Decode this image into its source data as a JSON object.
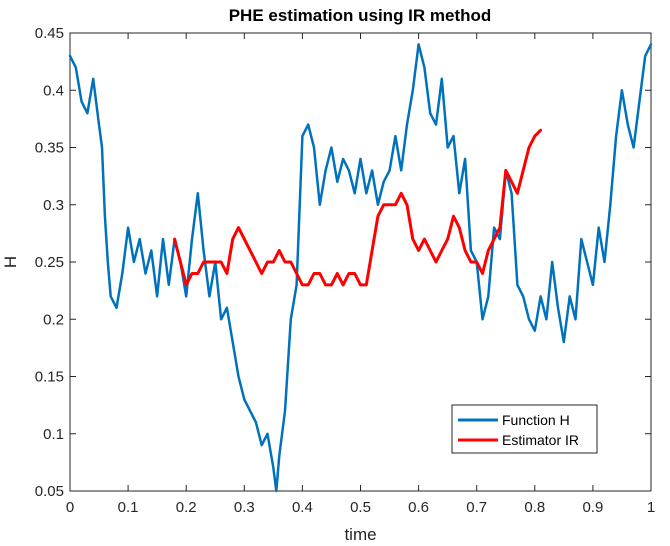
{
  "chart_data": {
    "type": "line",
    "title": "PHE estimation using IR method",
    "xlabel": "time",
    "ylabel": "H",
    "xlim": [
      0,
      1
    ],
    "ylim": [
      0.05,
      0.45
    ],
    "xticks": [
      0,
      0.1,
      0.2,
      0.3,
      0.4,
      0.5,
      0.6,
      0.7,
      0.8,
      0.9,
      1
    ],
    "xtick_labels": [
      "0",
      "0.1",
      "0.2",
      "0.3",
      "0.4",
      "0.5",
      "0.6",
      "0.7",
      "0.8",
      "0.9",
      "1"
    ],
    "yticks": [
      0.05,
      0.1,
      0.15,
      0.2,
      0.25,
      0.3,
      0.35,
      0.4,
      0.45
    ],
    "ytick_labels": [
      "0.05",
      "0.1",
      "0.15",
      "0.2",
      "0.25",
      "0.3",
      "0.35",
      "0.4",
      "0.45"
    ],
    "grid": false,
    "legend_position": "bottom-right",
    "series": [
      {
        "name": "Function H",
        "color": "#0072BD",
        "x": [
          0.0,
          0.01,
          0.02,
          0.03,
          0.04,
          0.05,
          0.055,
          0.06,
          0.065,
          0.07,
          0.08,
          0.09,
          0.1,
          0.11,
          0.12,
          0.13,
          0.14,
          0.15,
          0.16,
          0.17,
          0.18,
          0.19,
          0.2,
          0.21,
          0.22,
          0.23,
          0.24,
          0.25,
          0.26,
          0.27,
          0.28,
          0.29,
          0.3,
          0.31,
          0.32,
          0.33,
          0.34,
          0.35,
          0.355,
          0.36,
          0.37,
          0.38,
          0.39,
          0.4,
          0.41,
          0.42,
          0.43,
          0.44,
          0.45,
          0.46,
          0.47,
          0.48,
          0.49,
          0.5,
          0.51,
          0.52,
          0.53,
          0.54,
          0.55,
          0.56,
          0.57,
          0.58,
          0.59,
          0.6,
          0.61,
          0.62,
          0.63,
          0.64,
          0.65,
          0.66,
          0.67,
          0.68,
          0.69,
          0.7,
          0.71,
          0.72,
          0.73,
          0.74,
          0.75,
          0.76,
          0.77,
          0.78,
          0.79,
          0.8,
          0.81,
          0.82,
          0.83,
          0.84,
          0.85,
          0.86,
          0.87,
          0.88,
          0.89,
          0.9,
          0.91,
          0.92,
          0.93,
          0.94,
          0.95,
          0.96,
          0.97,
          0.98,
          0.99,
          1.0
        ],
        "y": [
          0.43,
          0.42,
          0.39,
          0.38,
          0.41,
          0.37,
          0.35,
          0.29,
          0.25,
          0.22,
          0.21,
          0.24,
          0.28,
          0.25,
          0.27,
          0.24,
          0.26,
          0.22,
          0.27,
          0.23,
          0.27,
          0.25,
          0.22,
          0.27,
          0.31,
          0.26,
          0.22,
          0.25,
          0.2,
          0.21,
          0.18,
          0.15,
          0.13,
          0.12,
          0.11,
          0.09,
          0.1,
          0.07,
          0.05,
          0.08,
          0.12,
          0.2,
          0.23,
          0.36,
          0.37,
          0.35,
          0.3,
          0.33,
          0.35,
          0.32,
          0.34,
          0.33,
          0.31,
          0.34,
          0.31,
          0.33,
          0.3,
          0.32,
          0.33,
          0.36,
          0.33,
          0.37,
          0.4,
          0.44,
          0.42,
          0.38,
          0.37,
          0.41,
          0.35,
          0.36,
          0.31,
          0.34,
          0.26,
          0.25,
          0.2,
          0.22,
          0.28,
          0.27,
          0.33,
          0.31,
          0.23,
          0.22,
          0.2,
          0.19,
          0.22,
          0.2,
          0.25,
          0.21,
          0.18,
          0.22,
          0.2,
          0.27,
          0.25,
          0.23,
          0.28,
          0.25,
          0.3,
          0.36,
          0.4,
          0.37,
          0.35,
          0.39,
          0.43,
          0.44
        ]
      },
      {
        "name": "Estimator IR",
        "color": "#FF0000",
        "x": [
          0.18,
          0.19,
          0.2,
          0.21,
          0.22,
          0.23,
          0.24,
          0.25,
          0.26,
          0.27,
          0.28,
          0.29,
          0.3,
          0.31,
          0.32,
          0.33,
          0.34,
          0.35,
          0.36,
          0.37,
          0.38,
          0.39,
          0.4,
          0.41,
          0.42,
          0.43,
          0.44,
          0.45,
          0.46,
          0.47,
          0.48,
          0.49,
          0.5,
          0.51,
          0.52,
          0.53,
          0.54,
          0.55,
          0.56,
          0.57,
          0.58,
          0.59,
          0.6,
          0.61,
          0.62,
          0.63,
          0.64,
          0.65,
          0.66,
          0.67,
          0.68,
          0.69,
          0.7,
          0.71,
          0.72,
          0.73,
          0.74,
          0.75,
          0.76,
          0.77,
          0.78,
          0.79,
          0.8,
          0.81
        ],
        "y": [
          0.27,
          0.25,
          0.23,
          0.24,
          0.24,
          0.25,
          0.25,
          0.25,
          0.25,
          0.24,
          0.27,
          0.28,
          0.27,
          0.26,
          0.25,
          0.24,
          0.25,
          0.25,
          0.26,
          0.25,
          0.25,
          0.24,
          0.23,
          0.23,
          0.24,
          0.24,
          0.23,
          0.23,
          0.24,
          0.23,
          0.24,
          0.24,
          0.23,
          0.23,
          0.26,
          0.29,
          0.3,
          0.3,
          0.3,
          0.31,
          0.3,
          0.27,
          0.26,
          0.27,
          0.26,
          0.25,
          0.26,
          0.27,
          0.29,
          0.28,
          0.26,
          0.25,
          0.25,
          0.24,
          0.26,
          0.27,
          0.28,
          0.33,
          0.32,
          0.31,
          0.33,
          0.35,
          0.36,
          0.365
        ]
      }
    ]
  }
}
